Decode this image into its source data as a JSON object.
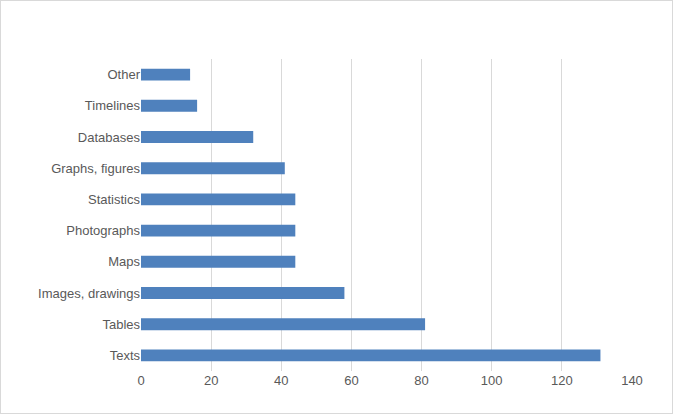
{
  "chart_data": {
    "type": "bar",
    "orientation": "horizontal",
    "categories": [
      "Texts",
      "Tables",
      "Images, drawings",
      "Maps",
      "Photographs",
      "Statistics",
      "Graphs, figures",
      "Databases",
      "Timelines",
      "Other"
    ],
    "values": [
      131,
      81,
      58,
      44,
      44,
      44,
      41,
      32,
      16,
      14
    ],
    "color": "#4f81bd",
    "xlim": [
      0,
      140
    ],
    "xticks": [
      0,
      20,
      40,
      60,
      80,
      100,
      120,
      140
    ],
    "grid": true
  }
}
